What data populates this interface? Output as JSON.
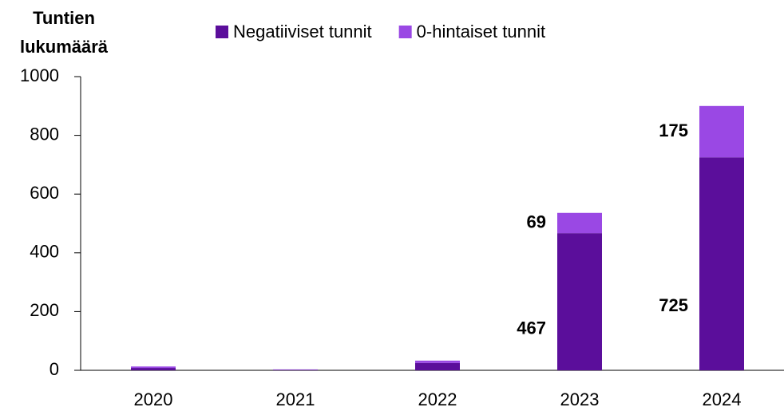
{
  "chart_data": {
    "type": "stacked_bar",
    "ylabel": [
      "Tuntien",
      "lukumäärä"
    ],
    "categories": [
      "2020",
      "2021",
      "2022",
      "2023",
      "2024"
    ],
    "series": [
      {
        "name": "Negatiiviset tunnit",
        "color": "#5b0e9b",
        "values": [
          8,
          2,
          25,
          467,
          725
        ],
        "value_labels": [
          null,
          null,
          null,
          "467",
          "725"
        ]
      },
      {
        "name": "0-hintaiset tunnit",
        "color": "#9a48e4",
        "values": [
          5,
          1,
          8,
          69,
          175
        ],
        "value_labels": [
          null,
          null,
          null,
          "69",
          "175"
        ]
      }
    ],
    "ylim": [
      0,
      1000
    ],
    "yticks": [
      0,
      200,
      400,
      600,
      800,
      1000
    ],
    "grid": false,
    "legend": "top"
  }
}
